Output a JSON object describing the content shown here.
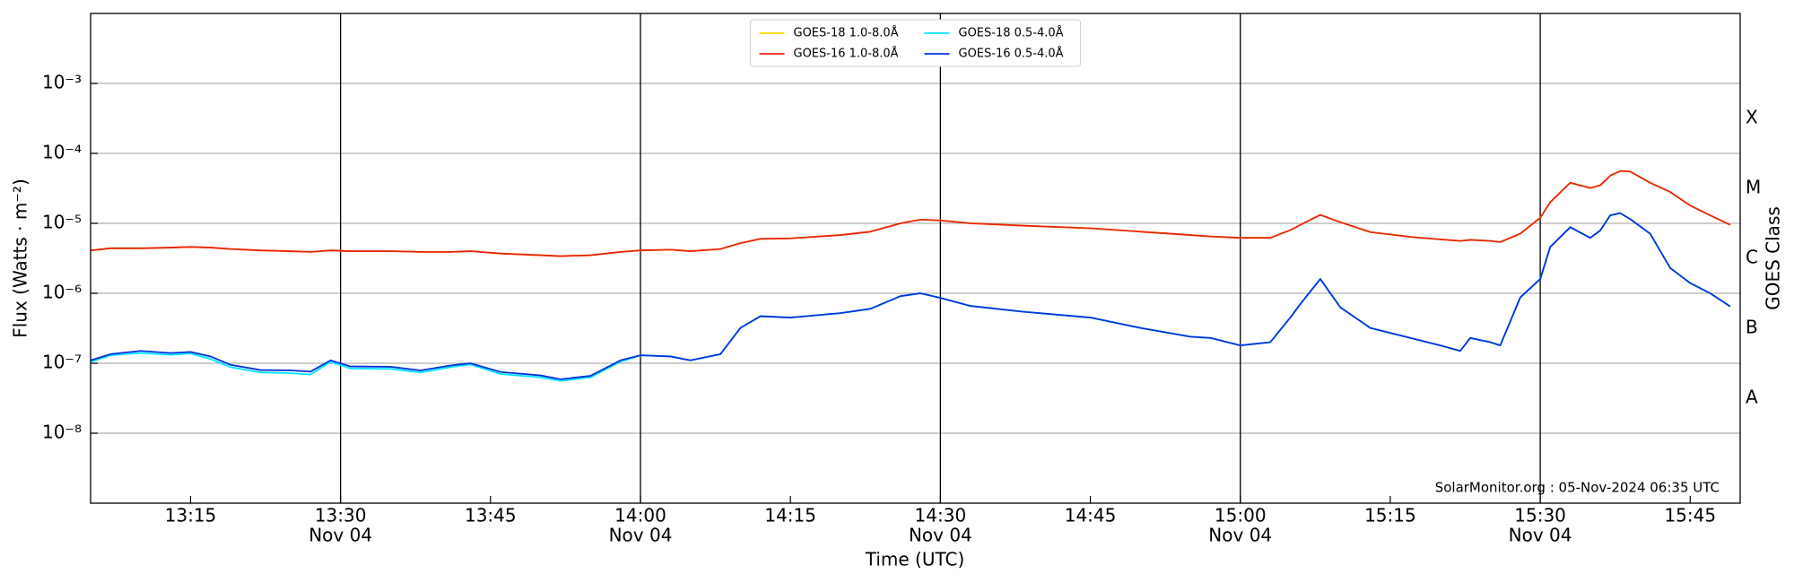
{
  "chart_data": {
    "type": "line",
    "xlabel": "Time (UTC)",
    "ylabel": "Flux (Watts · m⁻²)",
    "y2label": "GOES Class",
    "annotation": "SolarMonitor.org : 05-Nov-2024 06:35 UTC",
    "log_y": true,
    "grid": true,
    "legend": "upper center",
    "legend_columns": 2,
    "xlim": [
      "13:05",
      "15:50"
    ],
    "xticks": [
      {
        "value": "13:15",
        "label": "13:15"
      },
      {
        "value": "13:30",
        "label": "13:30",
        "date": "Nov 04"
      },
      {
        "value": "13:45",
        "label": "13:45"
      },
      {
        "value": "14:00",
        "label": "14:00",
        "date": "Nov 04"
      },
      {
        "value": "14:15",
        "label": "14:15"
      },
      {
        "value": "14:30",
        "label": "14:30",
        "date": "Nov 04"
      },
      {
        "value": "14:45",
        "label": "14:45"
      },
      {
        "value": "15:00",
        "label": "15:00",
        "date": "Nov 04"
      },
      {
        "value": "15:15",
        "label": "15:15"
      },
      {
        "value": "15:30",
        "label": "15:30",
        "date": "Nov 04"
      },
      {
        "value": "15:45",
        "label": "15:45"
      }
    ],
    "ylim": [
      1e-09,
      0.01
    ],
    "yticks": [
      {
        "value": 0.001,
        "label": "10⁻³"
      },
      {
        "value": 0.0001,
        "label": "10⁻⁴"
      },
      {
        "value": 1e-05,
        "label": "10⁻⁵"
      },
      {
        "value": 1e-06,
        "label": "10⁻⁶"
      },
      {
        "value": 1e-07,
        "label": "10⁻⁷"
      },
      {
        "value": 1e-08,
        "label": "10⁻⁸"
      }
    ],
    "y2ticks": [
      {
        "value": 0.0001,
        "label": "X"
      },
      {
        "value": 1e-05,
        "label": "M"
      },
      {
        "value": 1e-06,
        "label": "C"
      },
      {
        "value": 1e-07,
        "label": "B"
      },
      {
        "value": 1e-08,
        "label": "A"
      }
    ],
    "x": [
      "13:05",
      "13:07",
      "13:10",
      "13:13",
      "13:15",
      "13:17",
      "13:19",
      "13:22",
      "13:25",
      "13:27",
      "13:29",
      "13:31",
      "13:35",
      "13:38",
      "13:41",
      "13:43",
      "13:46",
      "13:50",
      "13:52",
      "13:55",
      "13:58",
      "14:00",
      "14:03",
      "14:05",
      "14:08",
      "14:10",
      "14:12",
      "14:15",
      "14:20",
      "14:23",
      "14:26",
      "14:28",
      "14:30",
      "14:33",
      "14:38",
      "14:45",
      "14:50",
      "14:55",
      "14:57",
      "15:00",
      "15:03",
      "15:05",
      "15:06",
      "15:08",
      "15:10",
      "15:13",
      "15:17",
      "15:20",
      "15:22",
      "15:23",
      "15:25",
      "15:26",
      "15:28",
      "15:30",
      "15:31",
      "15:33",
      "15:35",
      "15:36",
      "15:37",
      "15:38",
      "15:39",
      "15:41",
      "15:43",
      "15:45",
      "15:47",
      "15:49"
    ],
    "series": [
      {
        "name": "GOES-18 1.0-8.0Å",
        "color": "#ffd700",
        "values": [
          4.1e-06,
          4.4e-06,
          4.4e-06,
          4.5e-06,
          4.6e-06,
          4.5e-06,
          4.3e-06,
          4.1e-06,
          4e-06,
          3.9e-06,
          4.1e-06,
          4e-06,
          4e-06,
          3.9e-06,
          3.9e-06,
          4e-06,
          3.7e-06,
          3.5e-06,
          3.4e-06,
          3.5e-06,
          3.9e-06,
          4.1e-06,
          4.2e-06,
          4e-06,
          4.3e-06,
          5.2e-06,
          6e-06,
          6.1e-06,
          6.8e-06,
          7.6e-06,
          1e-05,
          1.13e-05,
          1.1e-05,
          1e-05,
          9.3e-06,
          8.5e-06,
          7.6e-06,
          6.8e-06,
          6.5e-06,
          6.2e-06,
          6.2e-06,
          8e-06,
          9.5e-06,
          1.32e-05,
          1.04e-05,
          7.5e-06,
          6.4e-06,
          5.9e-06,
          5.6e-06,
          5.8e-06,
          5.6e-06,
          5.4e-06,
          7.1e-06,
          1.2e-05,
          2e-05,
          3.8e-05,
          3.2e-05,
          3.5e-05,
          4.8e-05,
          5.6e-05,
          5.5e-05,
          3.8e-05,
          2.8e-05,
          1.8e-05,
          1.3e-05,
          9.5e-06
        ]
      },
      {
        "name": "GOES-16 1.0-8.0Å",
        "color": "#e8240c",
        "values": [
          4.1e-06,
          4.4e-06,
          4.4e-06,
          4.5e-06,
          4.6e-06,
          4.5e-06,
          4.3e-06,
          4.1e-06,
          4e-06,
          3.9e-06,
          4.1e-06,
          4e-06,
          4e-06,
          3.9e-06,
          3.9e-06,
          4e-06,
          3.7e-06,
          3.5e-06,
          3.4e-06,
          3.5e-06,
          3.9e-06,
          4.1e-06,
          4.2e-06,
          4e-06,
          4.3e-06,
          5.2e-06,
          6e-06,
          6.1e-06,
          6.8e-06,
          7.6e-06,
          1e-05,
          1.13e-05,
          1.1e-05,
          1e-05,
          9.3e-06,
          8.5e-06,
          7.6e-06,
          6.8e-06,
          6.5e-06,
          6.2e-06,
          6.2e-06,
          8e-06,
          9.5e-06,
          1.32e-05,
          1.04e-05,
          7.5e-06,
          6.4e-06,
          5.9e-06,
          5.6e-06,
          5.8e-06,
          5.6e-06,
          5.4e-06,
          7.1e-06,
          1.2e-05,
          2e-05,
          3.8e-05,
          3.2e-05,
          3.5e-05,
          4.8e-05,
          5.6e-05,
          5.5e-05,
          3.8e-05,
          2.8e-05,
          1.8e-05,
          1.3e-05,
          9.5e-06
        ]
      },
      {
        "name": "GOES-18 0.5-4.0Å",
        "color": "#00e5ff",
        "values": [
          1.05e-07,
          1.3e-07,
          1.4e-07,
          1.32e-07,
          1.38e-07,
          1.15e-07,
          8.8e-08,
          7.4e-08,
          7.2e-08,
          6.9e-08,
          1.05e-07,
          8.4e-08,
          8.3e-08,
          7.4e-08,
          8.8e-08,
          9.6e-08,
          7e-08,
          6.3e-08,
          5.6e-08,
          6.3e-08,
          1.05e-07,
          1.3e-07,
          1.25e-07,
          1.1e-07,
          1.35e-07,
          3.2e-07,
          4.7e-07,
          4.5e-07,
          5.2e-07,
          6e-07,
          9.1e-07,
          1e-06,
          8.6e-07,
          6.6e-07,
          5.5e-07,
          4.5e-07,
          3.2e-07,
          2.4e-07,
          2.3e-07,
          1.8e-07,
          2e-07,
          4.5e-07,
          7e-07,
          1.6e-06,
          6.3e-07,
          3.2e-07,
          2.3e-07,
          1.8e-07,
          1.5e-07,
          2.3e-07,
          2e-07,
          1.8e-07,
          8.7e-07,
          1.6e-06,
          4.6e-06,
          8.8e-06,
          6.2e-06,
          7.9e-06,
          1.3e-05,
          1.4e-05,
          1.15e-05,
          7.1e-06,
          2.3e-06,
          1.4e-06,
          1e-06,
          6.5e-07
        ]
      },
      {
        "name": "GOES-16 0.5-4.0Å",
        "color": "#0033dd",
        "values": [
          1.1e-07,
          1.35e-07,
          1.5e-07,
          1.4e-07,
          1.45e-07,
          1.25e-07,
          9.5e-08,
          8e-08,
          7.9e-08,
          7.6e-08,
          1.1e-07,
          9e-08,
          8.9e-08,
          7.9e-08,
          9.3e-08,
          1e-07,
          7.5e-08,
          6.7e-08,
          5.9e-08,
          6.6e-08,
          1.1e-07,
          1.3e-07,
          1.25e-07,
          1.1e-07,
          1.35e-07,
          3.2e-07,
          4.7e-07,
          4.5e-07,
          5.2e-07,
          6e-07,
          9.1e-07,
          1e-06,
          8.6e-07,
          6.6e-07,
          5.5e-07,
          4.5e-07,
          3.2e-07,
          2.4e-07,
          2.3e-07,
          1.8e-07,
          2e-07,
          4.5e-07,
          7e-07,
          1.6e-06,
          6.3e-07,
          3.2e-07,
          2.3e-07,
          1.8e-07,
          1.5e-07,
          2.3e-07,
          2e-07,
          1.8e-07,
          8.7e-07,
          1.6e-06,
          4.6e-06,
          8.8e-06,
          6.2e-06,
          7.9e-06,
          1.3e-05,
          1.4e-05,
          1.15e-05,
          7.1e-06,
          2.3e-06,
          1.4e-06,
          1e-06,
          6.5e-07
        ]
      }
    ]
  }
}
